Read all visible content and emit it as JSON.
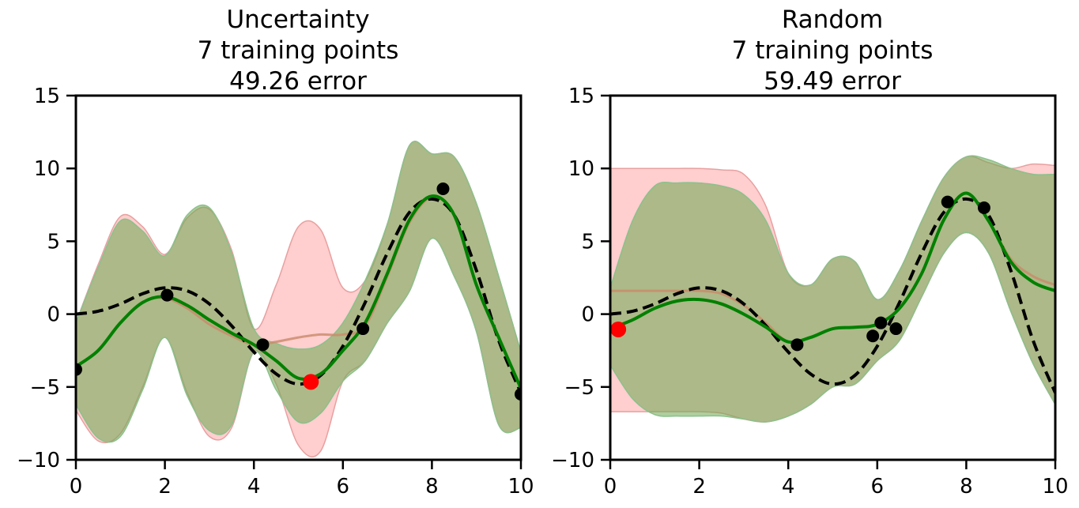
{
  "chart_data": [
    {
      "type": "line",
      "title": [
        "Uncertainty",
        "7 training points",
        "49.26 error"
      ],
      "xlim": [
        0,
        10
      ],
      "ylim": [
        -10,
        15
      ],
      "xticks": [
        "0",
        "2",
        "4",
        "6",
        "8",
        "10"
      ],
      "yticks": [
        "15",
        "10",
        "5",
        "0",
        "−5",
        "−10"
      ],
      "grid": false,
      "legend": "none",
      "colors": {
        "true_function": "#000000",
        "posterior_mean": "#008000",
        "prior_band": "#ffb3b3",
        "posterior_band": "#6aa84f",
        "prior_mean": "#c98a6a",
        "training_point": "#000000",
        "new_point": "#ff0000"
      },
      "true_function": {
        "x": [
          0,
          0.5,
          1,
          1.5,
          2,
          2.5,
          3,
          3.5,
          4,
          4.5,
          5,
          5.5,
          6,
          6.5,
          7,
          7.5,
          8,
          8.5,
          9,
          9.5,
          10
        ],
        "y": [
          0,
          0.2,
          0.7,
          1.4,
          1.8,
          1.6,
          0.7,
          -0.8,
          -2.6,
          -4.1,
          -4.8,
          -4.2,
          -2.2,
          0.8,
          4.2,
          7.0,
          7.9,
          6.8,
          3.0,
          -1.8,
          -5.4
        ]
      },
      "posterior_mean": {
        "x": [
          0,
          0.5,
          1,
          1.5,
          2,
          2.5,
          3,
          3.5,
          4,
          4.5,
          5,
          5.5,
          6,
          6.5,
          7,
          7.5,
          8,
          8.5,
          9,
          9.5,
          10
        ],
        "y": [
          -3.6,
          -2.5,
          -0.6,
          0.8,
          1.2,
          0.6,
          -0.4,
          -1.3,
          -2.1,
          -3.2,
          -4.4,
          -4.1,
          -2.5,
          -0.6,
          2.8,
          6.5,
          8.1,
          6.8,
          2.0,
          -1.6,
          -5.1
        ]
      },
      "posterior_band": {
        "x": [
          0,
          0.5,
          1,
          1.5,
          2,
          2.5,
          3,
          3.5,
          4,
          4.5,
          5,
          5.5,
          6,
          6.5,
          7,
          7.5,
          8,
          8.5,
          9,
          9.5,
          10
        ],
        "lower": [
          -6.2,
          -8.5,
          -8.4,
          -5.2,
          -1.6,
          -5.6,
          -8.0,
          -7.6,
          -2.6,
          -5.2,
          -7.4,
          -6.8,
          -4.6,
          -3.2,
          -0.6,
          1.6,
          5.2,
          2.6,
          -1.2,
          -7.6,
          -7.8
        ],
        "upper": [
          -0.6,
          3.2,
          6.4,
          5.7,
          4.0,
          6.8,
          7.3,
          4.2,
          -1.0,
          -2.0,
          -2.4,
          -2.1,
          -0.6,
          2.3,
          6.2,
          11.6,
          11.0,
          10.8,
          7.6,
          2.6,
          -2.6
        ]
      },
      "prior_band": {
        "x": [
          0,
          0.5,
          1,
          1.5,
          2,
          2.5,
          3,
          3.5,
          4,
          4.5,
          5,
          5.5,
          6,
          6.5,
          7,
          7.5,
          8,
          8.5,
          9,
          9.5,
          10
        ],
        "lower": [
          -6.6,
          -8.7,
          -8.2,
          -5.0,
          -1.6,
          -5.4,
          -8.4,
          -7.8,
          -2.6,
          -4.8,
          -9.0,
          -9.4,
          -4.6,
          -3.2,
          -0.6,
          1.6,
          5.2,
          2.6,
          -1.2,
          -7.6,
          -7.8
        ],
        "upper": [
          -0.6,
          3.4,
          6.7,
          6.0,
          4.1,
          6.6,
          7.2,
          4.4,
          -1.0,
          2.0,
          6.0,
          5.8,
          1.8,
          2.3,
          6.2,
          11.6,
          11.0,
          10.8,
          7.6,
          2.6,
          -2.6
        ]
      },
      "prior_mean": {
        "x": [
          0,
          0.5,
          1,
          1.5,
          2,
          2.5,
          3,
          3.5,
          4,
          4.5,
          5,
          5.5,
          6,
          6.5,
          7,
          7.5,
          8,
          8.5,
          9,
          9.5,
          10
        ],
        "y": [
          -3.6,
          -2.5,
          -0.6,
          0.8,
          1.1,
          0.4,
          -0.7,
          -1.5,
          -2.1,
          -1.9,
          -1.6,
          -1.4,
          -1.4,
          -0.8,
          2.6,
          6.3,
          8.0,
          6.8,
          2.0,
          -1.6,
          -5.1
        ]
      },
      "training_points": {
        "x": [
          0,
          2.05,
          4.2,
          6.45,
          8.25,
          10
        ],
        "y": [
          -3.8,
          1.3,
          -2.1,
          -1.0,
          8.6,
          -5.5
        ]
      },
      "new_point": {
        "x": [
          5.28
        ],
        "y": [
          -4.65
        ]
      }
    },
    {
      "type": "line",
      "title": [
        "Random",
        "7 training points",
        "59.49 error"
      ],
      "xlim": [
        0,
        10
      ],
      "ylim": [
        -10,
        15
      ],
      "xticks": [
        "0",
        "2",
        "4",
        "6",
        "8",
        "10"
      ],
      "yticks": [
        "15",
        "10",
        "5",
        "0",
        "−5",
        "−10"
      ],
      "grid": false,
      "legend": "none",
      "colors": {
        "true_function": "#000000",
        "posterior_mean": "#008000",
        "prior_band": "#ffb3b3",
        "posterior_band": "#6aa84f",
        "prior_mean": "#c98a6a",
        "training_point": "#000000",
        "new_point": "#ff0000"
      },
      "true_function": {
        "x": [
          0,
          0.5,
          1,
          1.5,
          2,
          2.5,
          3,
          3.5,
          4,
          4.5,
          5,
          5.5,
          6,
          6.5,
          7,
          7.5,
          8,
          8.5,
          9,
          9.5,
          10
        ],
        "y": [
          0,
          0.2,
          0.7,
          1.4,
          1.8,
          1.6,
          0.7,
          -0.8,
          -2.6,
          -4.1,
          -4.8,
          -4.2,
          -2.2,
          0.8,
          4.2,
          7.0,
          7.9,
          6.8,
          3.0,
          -1.8,
          -5.4
        ]
      },
      "posterior_mean": {
        "x": [
          0,
          0.5,
          1,
          1.5,
          2,
          2.5,
          3,
          3.5,
          4,
          4.5,
          5,
          5.5,
          6,
          6.5,
          7,
          7.5,
          8,
          8.5,
          9,
          9.5,
          10
        ],
        "y": [
          -1.0,
          -0.4,
          0.4,
          0.9,
          1.0,
          0.7,
          0.0,
          -0.9,
          -1.9,
          -1.6,
          -1.0,
          -0.9,
          -0.7,
          0.4,
          2.8,
          6.5,
          8.3,
          6.4,
          3.6,
          2.2,
          1.6
        ]
      },
      "posterior_band": {
        "x": [
          0,
          0.5,
          1,
          1.5,
          2,
          2.5,
          3,
          3.5,
          4,
          4.5,
          5,
          5.5,
          6,
          6.5,
          7,
          7.5,
          8,
          8.5,
          9,
          9.5,
          10
        ],
        "lower": [
          -3.5,
          -5.8,
          -6.9,
          -7.0,
          -7.0,
          -7.0,
          -7.2,
          -7.4,
          -7.0,
          -6.2,
          -5.0,
          -4.8,
          -3.2,
          -1.8,
          1.2,
          4.2,
          5.6,
          4.2,
          0.2,
          -3.4,
          -6.2
        ],
        "upper": [
          1.8,
          6.4,
          8.8,
          9.0,
          9.0,
          8.8,
          8.2,
          6.4,
          2.8,
          2.0,
          3.8,
          3.6,
          1.0,
          3.0,
          6.4,
          9.4,
          10.8,
          10.6,
          10.0,
          9.6,
          9.6
        ]
      },
      "prior_band": {
        "x": [
          0,
          0.5,
          1,
          1.5,
          2,
          2.5,
          3,
          3.5,
          4,
          4.5,
          5,
          5.5,
          6,
          6.5,
          7,
          7.5,
          8,
          8.5,
          9,
          9.5,
          10
        ],
        "lower": [
          -6.7,
          -6.7,
          -6.7,
          -6.7,
          -6.7,
          -6.8,
          -7.2,
          -7.4,
          -7.0,
          -6.2,
          -5.0,
          -4.8,
          -3.2,
          -1.8,
          1.2,
          4.2,
          5.6,
          4.2,
          0.2,
          -3.4,
          -6.2
        ],
        "upper": [
          10.0,
          10.0,
          10.0,
          10.0,
          10.0,
          9.9,
          9.6,
          7.4,
          2.8,
          2.0,
          3.8,
          3.6,
          1.0,
          3.0,
          6.4,
          9.4,
          10.8,
          10.4,
          10.0,
          10.3,
          10.2
        ]
      },
      "prior_mean": {
        "x": [
          0,
          0.5,
          1,
          1.5,
          2,
          2.5,
          3,
          3.5,
          4,
          4.5,
          5,
          5.5,
          6,
          6.5,
          7,
          7.5,
          8,
          8.5,
          9,
          9.5,
          10
        ],
        "y": [
          1.6,
          1.6,
          1.6,
          1.6,
          1.6,
          1.4,
          0.6,
          -0.6,
          -1.9,
          -1.6,
          -1.0,
          -0.9,
          -0.7,
          0.4,
          2.8,
          6.5,
          8.3,
          6.4,
          3.8,
          2.6,
          2.0
        ]
      },
      "training_points": {
        "x": [
          4.2,
          5.9,
          6.08,
          6.42,
          7.58,
          8.4
        ],
        "y": [
          -2.1,
          -1.5,
          -0.6,
          -1.0,
          7.7,
          7.3
        ]
      },
      "new_point": {
        "x": [
          0.18
        ],
        "y": [
          -1.05
        ]
      }
    }
  ]
}
